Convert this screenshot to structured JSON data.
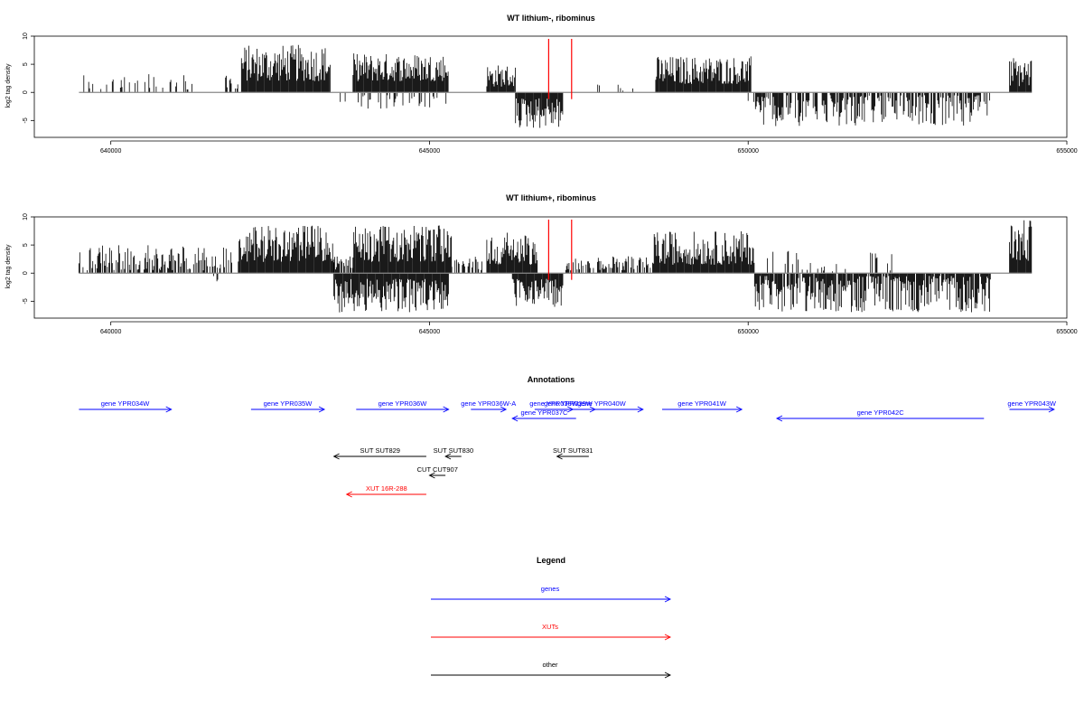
{
  "colors": {
    "genes": "#0000ff",
    "xuts": "#ff0000",
    "other": "#000000",
    "marker": "#ff0000",
    "baseline": "#888888"
  },
  "chart_data": [
    {
      "type": "bar",
      "title": "WT lithium-, ribominus",
      "ylabel": "log2 tag density",
      "xlim": [
        638800,
        655000
      ],
      "ylim": [
        -8,
        10
      ],
      "xticks": [
        640000,
        645000,
        650000,
        655000
      ],
      "xtick_labels": [
        "640000",
        "645000",
        "650000",
        "655000"
      ],
      "yticks": [
        10,
        5,
        0,
        -5
      ],
      "ytick_labels": [
        "10",
        "5",
        "0",
        "-5"
      ],
      "markers": [
        646870,
        647230
      ],
      "regions": [
        {
          "start": 639500,
          "end": 641300,
          "min": 0.3,
          "max": 3.5,
          "sign": 1,
          "density": 0.25
        },
        {
          "start": 641800,
          "end": 642000,
          "min": 0.5,
          "max": 3,
          "sign": 1,
          "density": 0.5
        },
        {
          "start": 642050,
          "end": 643450,
          "min": 2,
          "max": 8.5,
          "sign": 1,
          "density": 1
        },
        {
          "start": 643600,
          "end": 645300,
          "min": 0.5,
          "max": 3,
          "sign": -1,
          "density": 0.25
        },
        {
          "start": 643800,
          "end": 645300,
          "min": 2,
          "max": 7,
          "sign": 1,
          "density": 1
        },
        {
          "start": 645900,
          "end": 646350,
          "min": 1,
          "max": 5,
          "sign": 1,
          "density": 1
        },
        {
          "start": 646350,
          "end": 647100,
          "min": 1,
          "max": 6.5,
          "sign": -1,
          "density": 1
        },
        {
          "start": 647500,
          "end": 648200,
          "min": 0.2,
          "max": 1.5,
          "sign": 1,
          "density": 0.08
        },
        {
          "start": 648550,
          "end": 650050,
          "min": 1.5,
          "max": 6.5,
          "sign": 1,
          "density": 1
        },
        {
          "start": 650000,
          "end": 653800,
          "min": 0.5,
          "max": 6,
          "sign": -1,
          "density": 0.7
        },
        {
          "start": 654100,
          "end": 654450,
          "min": 1,
          "max": 6.5,
          "sign": 1,
          "density": 1
        }
      ]
    },
    {
      "type": "bar",
      "title": "WT lithium+, ribominus",
      "ylabel": "log2 tag density",
      "xlim": [
        638800,
        655000
      ],
      "ylim": [
        -8,
        10
      ],
      "xticks": [
        640000,
        645000,
        650000,
        655000
      ],
      "xtick_labels": [
        "640000",
        "645000",
        "650000",
        "655000"
      ],
      "yticks": [
        10,
        5,
        0,
        -5
      ],
      "ytick_labels": [
        "10",
        "5",
        "0",
        "-5"
      ],
      "markers": [
        646870,
        647230
      ],
      "regions": [
        {
          "start": 639500,
          "end": 641900,
          "min": 0.5,
          "max": 5,
          "sign": 1,
          "density": 0.6
        },
        {
          "start": 641600,
          "end": 641700,
          "min": 0.5,
          "max": 2,
          "sign": -1,
          "density": 0.3
        },
        {
          "start": 642000,
          "end": 643500,
          "min": 2,
          "max": 8.5,
          "sign": 1,
          "density": 1
        },
        {
          "start": 643500,
          "end": 643800,
          "min": 0.5,
          "max": 3,
          "sign": 1,
          "density": 0.6
        },
        {
          "start": 643800,
          "end": 645350,
          "min": 2,
          "max": 8.5,
          "sign": 1,
          "density": 1
        },
        {
          "start": 643500,
          "end": 645300,
          "min": 1,
          "max": 7,
          "sign": -1,
          "density": 1
        },
        {
          "start": 645350,
          "end": 645900,
          "min": 0.5,
          "max": 3,
          "sign": 1,
          "density": 0.5
        },
        {
          "start": 645900,
          "end": 646700,
          "min": 1.5,
          "max": 7.5,
          "sign": 1,
          "density": 1
        },
        {
          "start": 646300,
          "end": 647100,
          "min": 1,
          "max": 6,
          "sign": -1,
          "density": 1
        },
        {
          "start": 647100,
          "end": 648500,
          "min": 0.5,
          "max": 3,
          "sign": 1,
          "density": 0.5
        },
        {
          "start": 648500,
          "end": 650100,
          "min": 1.5,
          "max": 7.5,
          "sign": 1,
          "density": 1
        },
        {
          "start": 650100,
          "end": 653800,
          "min": 0.5,
          "max": 7,
          "sign": -1,
          "density": 0.9
        },
        {
          "start": 650300,
          "end": 652500,
          "min": 0.3,
          "max": 4,
          "sign": 1,
          "density": 0.15
        },
        {
          "start": 654100,
          "end": 654450,
          "min": 2,
          "max": 9.5,
          "sign": 1,
          "density": 1
        }
      ]
    }
  ],
  "annotations": {
    "title": "Annotations",
    "items": [
      {
        "label": "gene YPR034W",
        "start": 639500,
        "end": 640950,
        "strand": "+",
        "row": 0,
        "cls": "genes"
      },
      {
        "label": "gene YPR035W",
        "start": 642200,
        "end": 643350,
        "strand": "+",
        "row": 0,
        "cls": "genes"
      },
      {
        "label": "gene YPR036W",
        "start": 643850,
        "end": 645300,
        "strand": "+",
        "row": 0,
        "cls": "genes"
      },
      {
        "label": "gene YPR036W-A",
        "start": 645650,
        "end": 646200,
        "strand": "+",
        "row": 0,
        "cls": "genes"
      },
      {
        "label": "gene YPR038W",
        "start": 646650,
        "end": 647250,
        "strand": "+",
        "row": 0,
        "cls": "genes"
      },
      {
        "label": "gene YPR039W",
        "start": 646750,
        "end": 647600,
        "strand": "+",
        "row": 0,
        "cls": "genes"
      },
      {
        "label": "gene YPR040W",
        "start": 647050,
        "end": 648350,
        "strand": "+",
        "row": 0,
        "cls": "genes"
      },
      {
        "label": "gene YPR041W",
        "start": 648650,
        "end": 649900,
        "strand": "+",
        "row": 0,
        "cls": "genes"
      },
      {
        "label": "gene YPR043W",
        "start": 654100,
        "end": 654800,
        "strand": "+",
        "row": 0,
        "cls": "genes"
      },
      {
        "label": "gene YPR037C",
        "start": 646300,
        "end": 647300,
        "strand": "-",
        "row": 1,
        "cls": "genes"
      },
      {
        "label": "gene YPR042C",
        "start": 650450,
        "end": 653700,
        "strand": "-",
        "row": 1,
        "cls": "genes"
      },
      {
        "label": "SUT SUT829",
        "start": 643500,
        "end": 644950,
        "strand": "-",
        "row": 2,
        "cls": "other"
      },
      {
        "label": "SUT SUT830",
        "start": 645250,
        "end": 645500,
        "strand": "-",
        "row": 2,
        "cls": "other"
      },
      {
        "label": "SUT SUT831",
        "start": 647000,
        "end": 647500,
        "strand": "-",
        "row": 2,
        "cls": "other"
      },
      {
        "label": "CUT CUT907",
        "start": 645000,
        "end": 645250,
        "strand": "-",
        "row": 3,
        "cls": "other"
      },
      {
        "label": "XUT 16R-288",
        "start": 643700,
        "end": 644950,
        "strand": "-",
        "row": 4,
        "cls": "xuts"
      }
    ]
  },
  "legend": {
    "title": "Legend",
    "items": [
      {
        "label": "genes",
        "cls": "genes"
      },
      {
        "label": "XUTs",
        "cls": "xuts"
      },
      {
        "label": "other",
        "cls": "other"
      }
    ]
  }
}
